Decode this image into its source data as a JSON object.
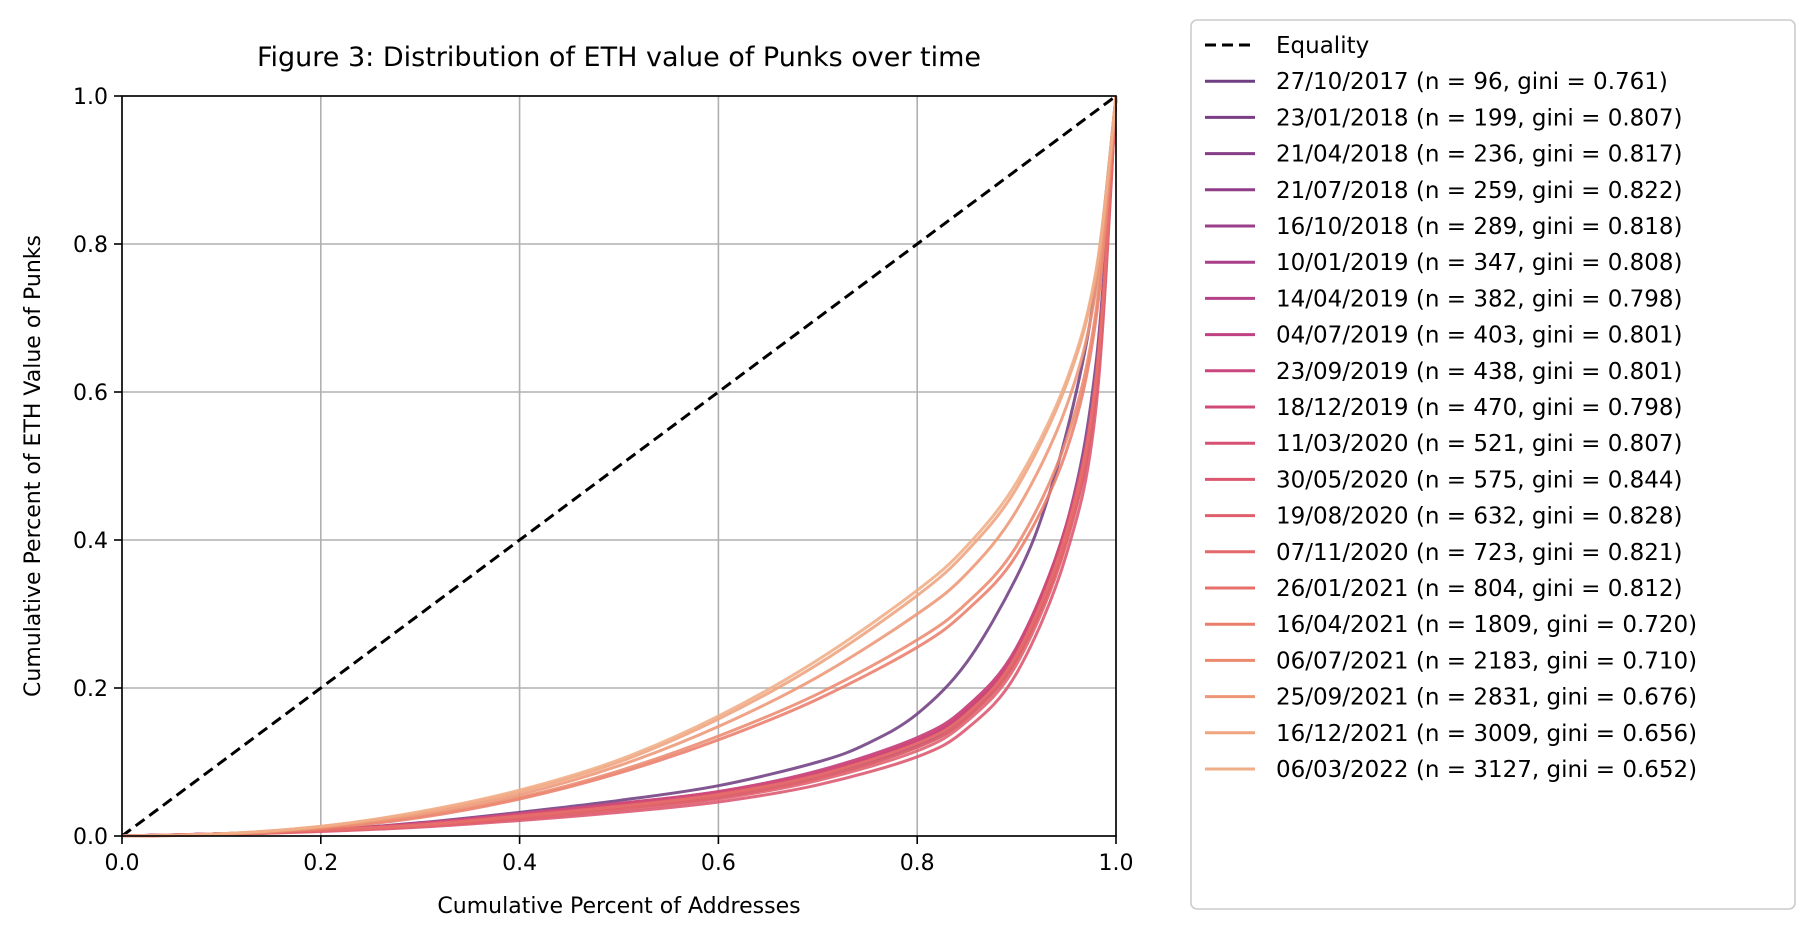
{
  "chart_data": {
    "type": "line",
    "title": "Figure 3: Distribution of ETH value of Punks over time",
    "xlabel": "Cumulative Percent of Addresses",
    "ylabel": "Cumulative Percent of ETH Value of Punks",
    "xlim": [
      0.0,
      1.0
    ],
    "ylim": [
      0.0,
      1.0
    ],
    "xticks": [
      "0.0",
      "0.2",
      "0.4",
      "0.6",
      "0.8",
      "1.0"
    ],
    "yticks": [
      "0.0",
      "0.2",
      "0.4",
      "0.6",
      "0.8",
      "1.0"
    ],
    "grid": true,
    "legend_position": "outside-right",
    "equality": {
      "name": "Equality",
      "color": "#000000",
      "x": [
        0,
        1
      ],
      "y": [
        0,
        1
      ]
    },
    "series": [
      {
        "name": "27/10/2017 (n = 96, gini = 0.761)",
        "color": "#6f3f82",
        "gini": 0.761,
        "x": [
          0,
          0.1,
          0.2,
          0.3,
          0.4,
          0.5,
          0.6,
          0.7,
          0.75,
          0.8,
          0.85,
          0.9,
          0.93,
          0.96,
          0.98,
          1.0
        ],
        "y": [
          0,
          0.003,
          0.008,
          0.018,
          0.032,
          0.048,
          0.068,
          0.1,
          0.125,
          0.165,
          0.235,
          0.35,
          0.45,
          0.6,
          0.75,
          1.0
        ]
      },
      {
        "name": "23/01/2018 (n = 199, gini = 0.807)",
        "color": "#7a3e85",
        "gini": 0.807,
        "x": [
          0,
          0.1,
          0.2,
          0.3,
          0.4,
          0.5,
          0.6,
          0.7,
          0.8,
          0.85,
          0.9,
          0.95,
          0.98,
          1.0
        ],
        "y": [
          0,
          0.003,
          0.008,
          0.016,
          0.028,
          0.042,
          0.058,
          0.085,
          0.13,
          0.17,
          0.25,
          0.42,
          0.64,
          1.0
        ]
      },
      {
        "name": "21/04/2018 (n = 236, gini = 0.817)",
        "color": "#843d86",
        "gini": 0.817,
        "x": [
          0,
          0.1,
          0.2,
          0.3,
          0.4,
          0.5,
          0.6,
          0.7,
          0.8,
          0.85,
          0.9,
          0.95,
          0.98,
          1.0
        ],
        "y": [
          0,
          0.003,
          0.008,
          0.015,
          0.026,
          0.039,
          0.055,
          0.082,
          0.125,
          0.165,
          0.245,
          0.41,
          0.62,
          1.0
        ]
      },
      {
        "name": "21/07/2018 (n = 259, gini = 0.822)",
        "color": "#903d88",
        "gini": 0.822,
        "x": [
          0,
          0.1,
          0.2,
          0.3,
          0.4,
          0.5,
          0.6,
          0.7,
          0.8,
          0.85,
          0.9,
          0.95,
          0.98,
          1.0
        ],
        "y": [
          0,
          0.003,
          0.007,
          0.014,
          0.025,
          0.037,
          0.052,
          0.078,
          0.12,
          0.16,
          0.24,
          0.4,
          0.61,
          1.0
        ]
      },
      {
        "name": "16/10/2018 (n = 289, gini = 0.818)",
        "color": "#9b3e89",
        "gini": 0.818,
        "x": [
          0,
          0.1,
          0.2,
          0.3,
          0.4,
          0.5,
          0.6,
          0.7,
          0.8,
          0.85,
          0.9,
          0.95,
          0.98,
          1.0
        ],
        "y": [
          0,
          0.003,
          0.007,
          0.015,
          0.026,
          0.038,
          0.054,
          0.08,
          0.122,
          0.162,
          0.24,
          0.4,
          0.6,
          1.0
        ]
      },
      {
        "name": "10/01/2019 (n = 347, gini = 0.808)",
        "color": "#a83f88",
        "gini": 0.808,
        "x": [
          0,
          0.1,
          0.2,
          0.3,
          0.4,
          0.5,
          0.6,
          0.7,
          0.8,
          0.85,
          0.9,
          0.95,
          0.98,
          1.0
        ],
        "y": [
          0,
          0.003,
          0.008,
          0.016,
          0.028,
          0.041,
          0.057,
          0.084,
          0.128,
          0.168,
          0.248,
          0.41,
          0.61,
          1.0
        ]
      },
      {
        "name": "14/04/2019 (n = 382, gini = 0.798)",
        "color": "#b44087",
        "gini": 0.798,
        "x": [
          0,
          0.1,
          0.2,
          0.3,
          0.4,
          0.5,
          0.6,
          0.7,
          0.8,
          0.85,
          0.9,
          0.95,
          0.98,
          1.0
        ],
        "y": [
          0,
          0.003,
          0.008,
          0.017,
          0.03,
          0.044,
          0.06,
          0.088,
          0.133,
          0.175,
          0.255,
          0.42,
          0.62,
          1.0
        ]
      },
      {
        "name": "04/07/2019 (n = 403, gini = 0.801)",
        "color": "#c04283",
        "gini": 0.801,
        "x": [
          0,
          0.1,
          0.2,
          0.3,
          0.4,
          0.5,
          0.6,
          0.7,
          0.8,
          0.85,
          0.9,
          0.95,
          0.98,
          1.0
        ],
        "y": [
          0,
          0.003,
          0.008,
          0.017,
          0.029,
          0.043,
          0.059,
          0.086,
          0.13,
          0.172,
          0.252,
          0.415,
          0.615,
          1.0
        ]
      },
      {
        "name": "23/09/2019 (n = 438, gini = 0.801)",
        "color": "#c9467e",
        "gini": 0.801,
        "x": [
          0,
          0.1,
          0.2,
          0.3,
          0.4,
          0.5,
          0.6,
          0.7,
          0.8,
          0.85,
          0.9,
          0.95,
          0.98,
          1.0
        ],
        "y": [
          0,
          0.003,
          0.008,
          0.016,
          0.029,
          0.043,
          0.058,
          0.085,
          0.13,
          0.17,
          0.25,
          0.415,
          0.615,
          1.0
        ]
      },
      {
        "name": "18/12/2019 (n = 470, gini = 0.798)",
        "color": "#d04b79",
        "gini": 0.798,
        "x": [
          0,
          0.1,
          0.2,
          0.3,
          0.4,
          0.5,
          0.6,
          0.7,
          0.8,
          0.85,
          0.9,
          0.95,
          0.98,
          1.0
        ],
        "y": [
          0,
          0.003,
          0.008,
          0.017,
          0.03,
          0.044,
          0.06,
          0.087,
          0.132,
          0.174,
          0.254,
          0.42,
          0.62,
          1.0
        ]
      },
      {
        "name": "11/03/2020 (n = 521, gini = 0.807)",
        "color": "#d75174",
        "gini": 0.807,
        "x": [
          0,
          0.1,
          0.2,
          0.3,
          0.4,
          0.5,
          0.6,
          0.7,
          0.8,
          0.85,
          0.9,
          0.95,
          0.98,
          1.0
        ],
        "y": [
          0,
          0.003,
          0.008,
          0.016,
          0.028,
          0.041,
          0.057,
          0.083,
          0.126,
          0.166,
          0.245,
          0.41,
          0.61,
          1.0
        ]
      },
      {
        "name": "30/05/2020 (n = 575, gini = 0.844)",
        "color": "#dc576f",
        "gini": 0.844,
        "x": [
          0,
          0.1,
          0.2,
          0.3,
          0.4,
          0.5,
          0.6,
          0.7,
          0.8,
          0.85,
          0.9,
          0.95,
          0.98,
          1.0
        ],
        "y": [
          0,
          0.002,
          0.006,
          0.012,
          0.021,
          0.032,
          0.046,
          0.069,
          0.107,
          0.145,
          0.22,
          0.38,
          0.58,
          1.0
        ]
      },
      {
        "name": "19/08/2020 (n = 632, gini = 0.828)",
        "color": "#e05f6c",
        "gini": 0.828,
        "x": [
          0,
          0.1,
          0.2,
          0.3,
          0.4,
          0.5,
          0.6,
          0.7,
          0.8,
          0.85,
          0.9,
          0.95,
          0.98,
          1.0
        ],
        "y": [
          0,
          0.002,
          0.007,
          0.013,
          0.023,
          0.035,
          0.05,
          0.075,
          0.115,
          0.155,
          0.232,
          0.395,
          0.6,
          1.0
        ]
      },
      {
        "name": "07/11/2020 (n = 723, gini = 0.821)",
        "color": "#e4676a",
        "gini": 0.821,
        "x": [
          0,
          0.1,
          0.2,
          0.3,
          0.4,
          0.5,
          0.6,
          0.7,
          0.8,
          0.85,
          0.9,
          0.95,
          0.98,
          1.0
        ],
        "y": [
          0,
          0.002,
          0.007,
          0.014,
          0.025,
          0.037,
          0.053,
          0.078,
          0.12,
          0.16,
          0.238,
          0.4,
          0.61,
          1.0
        ]
      },
      {
        "name": "26/01/2021 (n = 804, gini = 0.812)",
        "color": "#e7706a",
        "gini": 0.812,
        "x": [
          0,
          0.1,
          0.2,
          0.3,
          0.4,
          0.5,
          0.6,
          0.7,
          0.8,
          0.85,
          0.9,
          0.95,
          0.98,
          1.0
        ],
        "y": [
          0,
          0.003,
          0.008,
          0.015,
          0.027,
          0.04,
          0.056,
          0.082,
          0.125,
          0.165,
          0.245,
          0.41,
          0.62,
          1.0
        ]
      },
      {
        "name": "16/04/2021 (n = 1809, gini = 0.720)",
        "color": "#ea7d6c",
        "gini": 0.72,
        "x": [
          0,
          0.1,
          0.2,
          0.3,
          0.4,
          0.5,
          0.6,
          0.7,
          0.8,
          0.85,
          0.9,
          0.95,
          0.98,
          1.0
        ],
        "y": [
          0,
          0.002,
          0.01,
          0.025,
          0.05,
          0.085,
          0.13,
          0.185,
          0.255,
          0.305,
          0.38,
          0.52,
          0.7,
          1.0
        ]
      },
      {
        "name": "06/07/2021 (n = 2183, gini = 0.710)",
        "color": "#ec8a70",
        "gini": 0.71,
        "x": [
          0,
          0.1,
          0.2,
          0.3,
          0.4,
          0.5,
          0.6,
          0.7,
          0.8,
          0.85,
          0.9,
          0.95,
          0.98,
          1.0
        ],
        "y": [
          0,
          0.002,
          0.011,
          0.027,
          0.052,
          0.088,
          0.135,
          0.192,
          0.265,
          0.315,
          0.392,
          0.535,
          0.71,
          1.0
        ]
      },
      {
        "name": "25/09/2021 (n = 2831, gini = 0.676)",
        "color": "#ee9776",
        "gini": 0.676,
        "x": [
          0,
          0.1,
          0.2,
          0.3,
          0.4,
          0.5,
          0.6,
          0.7,
          0.8,
          0.85,
          0.9,
          0.95,
          0.98,
          1.0
        ],
        "y": [
          0,
          0.003,
          0.012,
          0.03,
          0.056,
          0.095,
          0.148,
          0.215,
          0.3,
          0.355,
          0.44,
          0.58,
          0.74,
          1.0
        ]
      },
      {
        "name": "16/12/2021 (n = 3009, gini = 0.656)",
        "color": "#efa37e",
        "gini": 0.656,
        "x": [
          0,
          0.1,
          0.2,
          0.3,
          0.4,
          0.5,
          0.6,
          0.7,
          0.8,
          0.85,
          0.9,
          0.95,
          0.98,
          1.0
        ],
        "y": [
          0,
          0.003,
          0.013,
          0.032,
          0.06,
          0.1,
          0.158,
          0.232,
          0.325,
          0.385,
          0.47,
          0.61,
          0.76,
          1.0
        ]
      },
      {
        "name": "06/03/2022 (n = 3127, gini = 0.652)",
        "color": "#f0ae88",
        "gini": 0.652,
        "x": [
          0,
          0.1,
          0.2,
          0.3,
          0.4,
          0.5,
          0.6,
          0.7,
          0.8,
          0.85,
          0.9,
          0.95,
          0.98,
          1.0
        ],
        "y": [
          0,
          0.003,
          0.013,
          0.033,
          0.062,
          0.103,
          0.162,
          0.238,
          0.332,
          0.392,
          0.478,
          0.615,
          0.765,
          1.0
        ]
      }
    ]
  }
}
